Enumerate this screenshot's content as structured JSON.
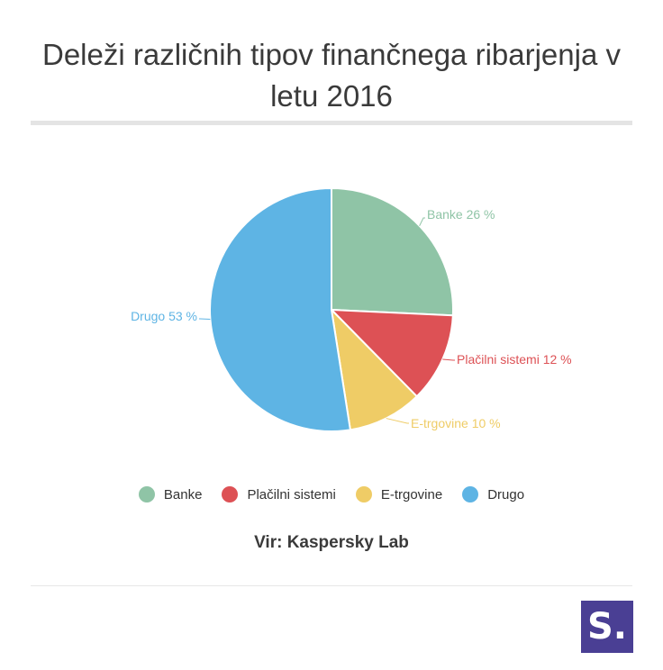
{
  "chart_data": {
    "type": "pie",
    "title": "Deleži različnih tipov finančnega ribarjenja v letu 2016",
    "unit": "%",
    "slices": [
      {
        "label": "Banke",
        "value": 26,
        "data_label": "Banke 26 %",
        "color": "#8fc4a6"
      },
      {
        "label": "Plačilni sistemi",
        "value": 12,
        "data_label": "Plačilni sistemi 12 %",
        "color": "#dd5155"
      },
      {
        "label": "E-trgovine",
        "value": 10,
        "data_label": "E-trgovine 10 %",
        "color": "#efcc66"
      },
      {
        "label": "Drugo",
        "value": 53,
        "data_label": "Drugo 53 %",
        "color": "#5eb4e4"
      }
    ],
    "legend_position": "bottom"
  },
  "source": "Vir: Kaspersky Lab",
  "logo": {
    "text": "S.",
    "color": "#4a3f94"
  }
}
